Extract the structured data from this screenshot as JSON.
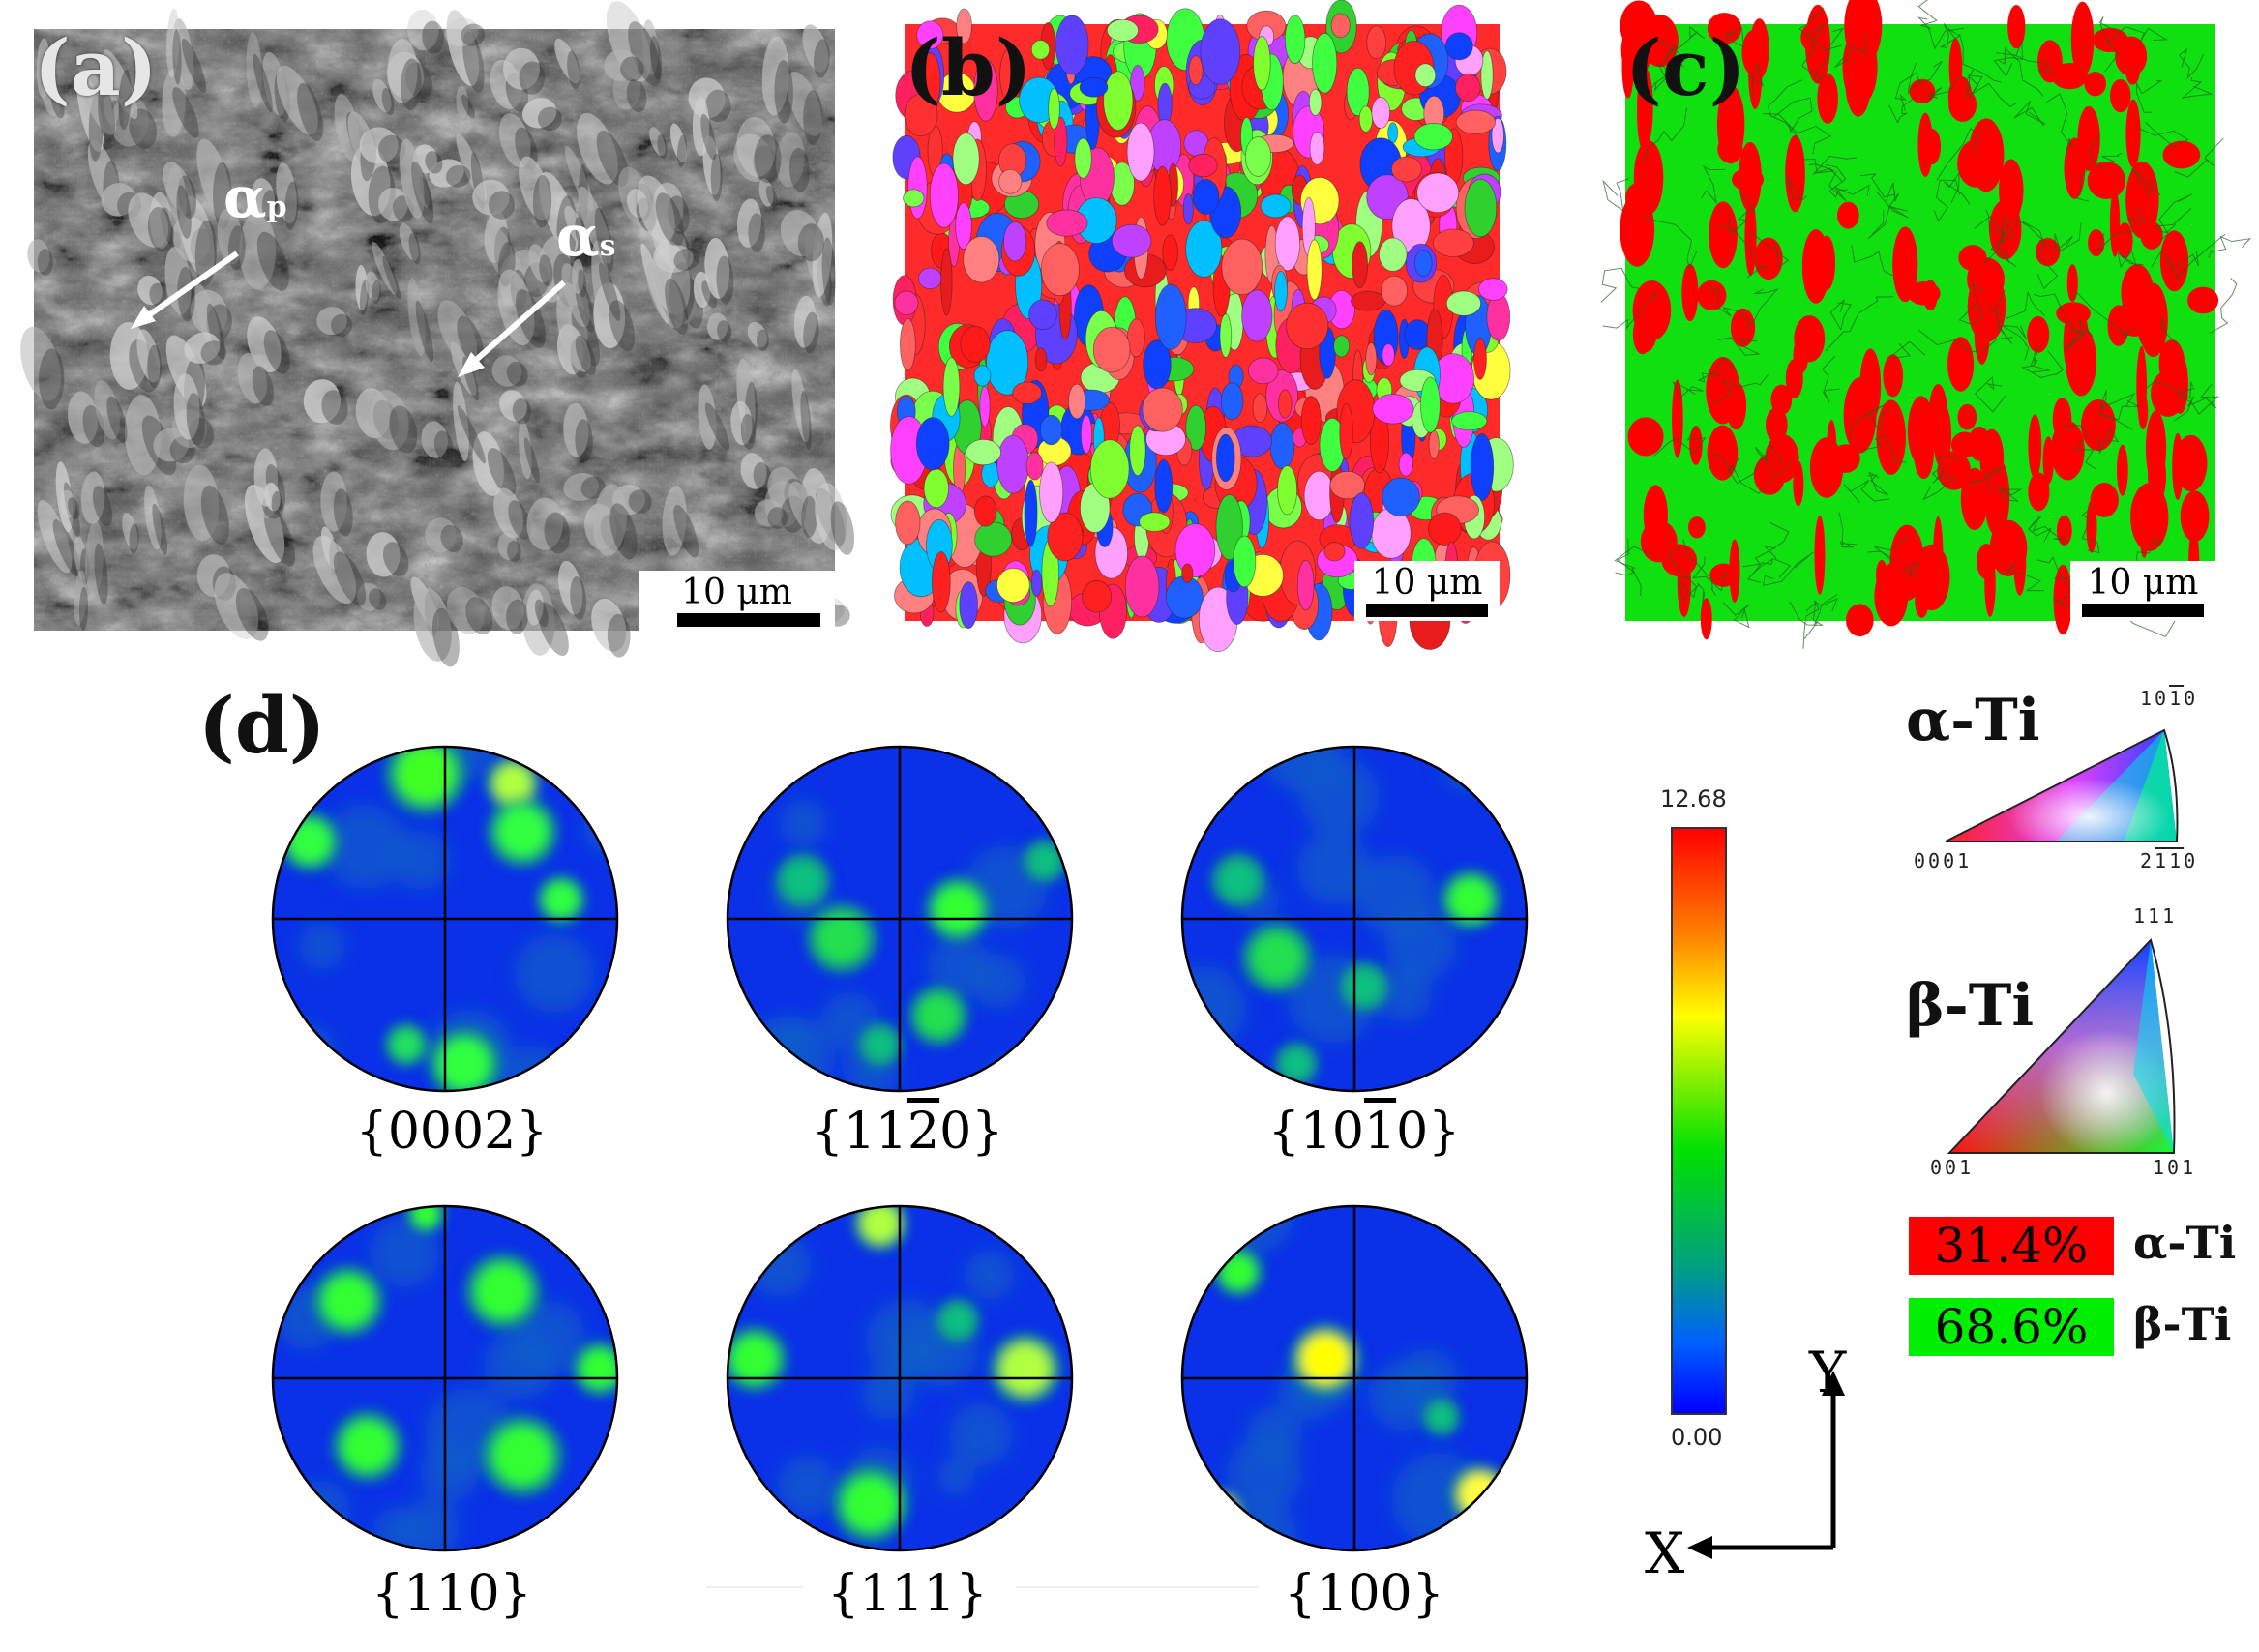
{
  "panels": {
    "a": {
      "label": "(a)",
      "annotations": {
        "alpha_p": "α",
        "alpha_p_sub": "p",
        "alpha_s": "α",
        "alpha_s_sub": "s"
      },
      "scale": "10 μm"
    },
    "b": {
      "label": "(b)",
      "scale": "10 μm"
    },
    "c": {
      "label": "(c)",
      "scale": "10 μm"
    },
    "d": {
      "label": "(d)"
    }
  },
  "pole_figures": [
    {
      "label_pre": "{11",
      "label_bar": "",
      "label_post": "",
      "id": "0002",
      "text": "{0002}"
    },
    {
      "text_a": "{11",
      "text_bar": "2",
      "text_b": "0}"
    },
    {
      "text_a": "{10",
      "text_bar": "1",
      "text_b": "0}"
    },
    {
      "text": "{110}"
    },
    {
      "text": "{111}"
    },
    {
      "text": "{100}"
    }
  ],
  "colorbar": {
    "max": "12.68",
    "min": "0.00"
  },
  "ipf": {
    "alpha": {
      "name": "α-Ti",
      "top": "10",
      "top_bar": "1",
      "top_end": "0",
      "left": "0001",
      "right_a": "2",
      "right_bar": "11",
      "right_b": "0"
    },
    "beta": {
      "name": "β-Ti",
      "top": "111",
      "left": "001",
      "right": "101"
    }
  },
  "phase_fractions": [
    {
      "value": "31.4%",
      "name": "α-Ti",
      "color": "#ff0000"
    },
    {
      "value": "68.6%",
      "name": "β-Ti",
      "color": "#00ee00"
    }
  ],
  "axes": {
    "x": "X",
    "y": "Y"
  }
}
